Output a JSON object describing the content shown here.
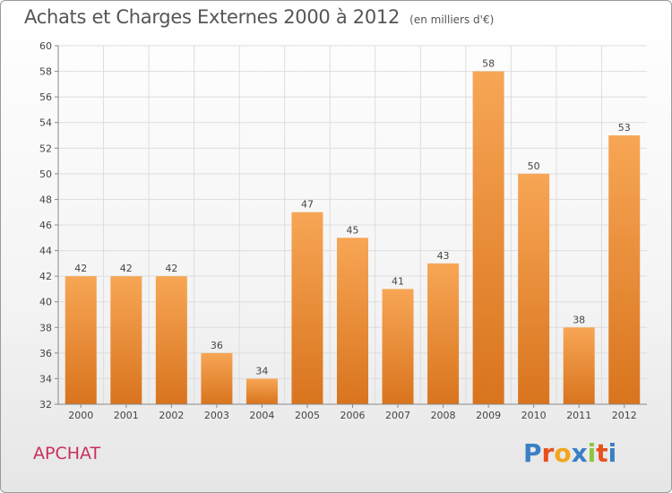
{
  "header": {
    "title": "Achats et Charges Externes 2000 à 2012",
    "unit": "(en milliers d'€)"
  },
  "commune": "APCHAT",
  "logo": {
    "letters": [
      "P",
      "r",
      "o",
      "x",
      "i",
      "t",
      "i"
    ],
    "colors": [
      "#3a7fc4",
      "#e8501e",
      "#f2a51c",
      "#3a7fc4",
      "#8cc63f",
      "#e8501e",
      "#3a7fc4"
    ]
  },
  "colors": {
    "bar_light": "#f7a655",
    "bar_dark": "#d9741e",
    "axis": "#888888",
    "grid": "#dddddd"
  },
  "chart_data": {
    "type": "bar",
    "title": "Achats et Charges Externes 2000 à 2012",
    "subtitle": "(en milliers d'€)",
    "categories": [
      "2000",
      "2001",
      "2002",
      "2003",
      "2004",
      "2005",
      "2006",
      "2007",
      "2008",
      "2009",
      "2010",
      "2011",
      "2012"
    ],
    "values": [
      42,
      42,
      42,
      36,
      34,
      47,
      45,
      41,
      43,
      58,
      50,
      38,
      53
    ],
    "ylim": [
      32,
      60
    ],
    "yticks": [
      32,
      34,
      36,
      38,
      40,
      42,
      44,
      46,
      48,
      50,
      52,
      54,
      56,
      58,
      60
    ],
    "grid": true,
    "xlabel": "",
    "ylabel": ""
  }
}
